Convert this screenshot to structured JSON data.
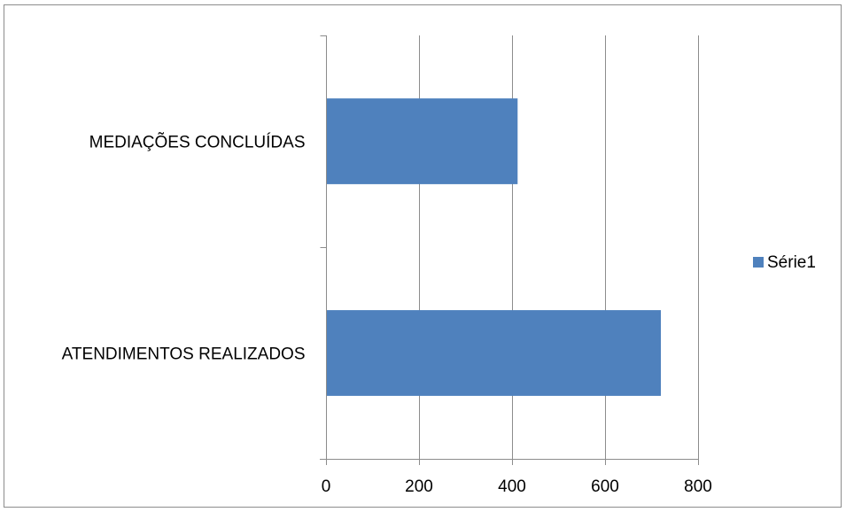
{
  "chart_data": {
    "type": "bar",
    "orientation": "horizontal",
    "categories": [
      "ATENDIMENTOS REALIZADOS",
      "MEDIAÇÕES CONCLUÍDAS"
    ],
    "series": [
      {
        "name": "Série1",
        "values": [
          720,
          412
        ],
        "color": "#4f81bd"
      }
    ],
    "xlim": [
      0,
      800
    ],
    "xticks": [
      0,
      200,
      400,
      600,
      800
    ],
    "grid": "vertical",
    "legend_position": "right",
    "title": "",
    "xlabel": "",
    "ylabel": ""
  }
}
